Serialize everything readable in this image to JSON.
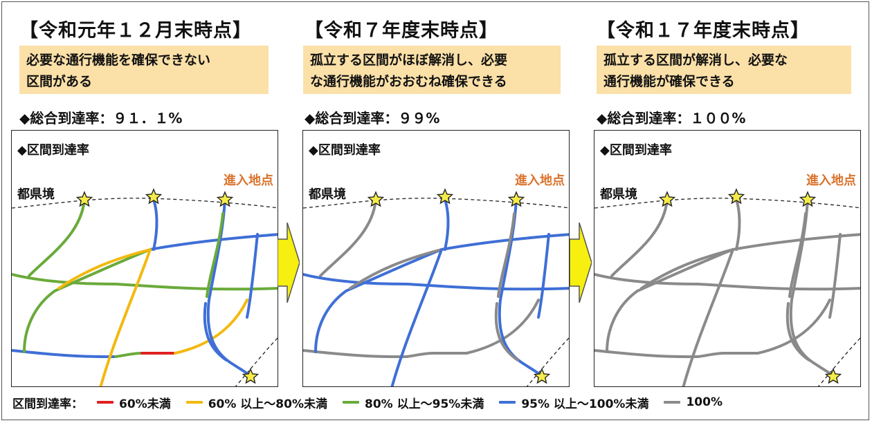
{
  "panels": [
    {
      "title": "【令和元年１２月末時点】",
      "description": [
        "必要な通行機能を確保できない",
        "区間がある"
      ],
      "overall_rate": "◆総合到達率：９１．１%",
      "section_label": "◆区間到達率",
      "prefecture_border_label": "都県境",
      "entry_point_label": "進入地点",
      "road_colors": {
        "main_horizontal": "blue95",
        "lower_horizontal_left": "blue95",
        "lower_horizontal_mid": "green80",
        "lower_horizontal_red": "red60",
        "lower_horizontal_right": "yellow60",
        "left_diagonal": "green80",
        "middle_cross": "green80",
        "middle_horizontal": "green80",
        "upper_yellow": "yellow60",
        "yellow_diagonal": "yellow60",
        "center_vertical": "blue95",
        "right_vertical": "blue95",
        "right_inner": "green80",
        "far_right": "blue95",
        "bottom_right_curve": "blue95"
      }
    },
    {
      "title": "【令和７年度末時点】",
      "description": [
        "孤立する区間がほぼ解消し、必要",
        "な通行機能がおおむね確保できる"
      ],
      "overall_rate": "◆総合到達率：９９%",
      "section_label": "◆区間到達率",
      "prefecture_border_label": "都県境",
      "entry_point_label": "進入地点",
      "road_colors": {
        "main_horizontal": "blue95",
        "lower_horizontal_left": "gray100",
        "lower_horizontal_mid": "gray100",
        "lower_horizontal_red": "gray100",
        "lower_horizontal_right": "gray100",
        "left_diagonal": "gray100",
        "middle_cross": "blue95",
        "middle_horizontal": "blue95",
        "upper_yellow": "gray100",
        "yellow_diagonal": "blue95",
        "center_vertical": "blue95",
        "right_vertical": "blue95",
        "right_inner": "gray100",
        "far_right": "blue95",
        "bottom_right_curve": "gray100"
      }
    },
    {
      "title": "【令和１７年度末時点】",
      "description": [
        "孤立する区間が解消し、必要な",
        "通行機能が確保できる"
      ],
      "overall_rate": "◆総合到達率：１００%",
      "section_label": "◆区間到達率",
      "prefecture_border_label": "都県境",
      "entry_point_label": "進入地点",
      "road_colors": {
        "main_horizontal": "gray100",
        "lower_horizontal_left": "gray100",
        "lower_horizontal_mid": "gray100",
        "lower_horizontal_red": "gray100",
        "lower_horizontal_right": "gray100",
        "left_diagonal": "gray100",
        "middle_cross": "gray100",
        "middle_horizontal": "gray100",
        "upper_yellow": "gray100",
        "yellow_diagonal": "gray100",
        "center_vertical": "gray100",
        "right_vertical": "gray100",
        "right_inner": "gray100",
        "far_right": "gray100",
        "bottom_right_curve": "gray100"
      }
    }
  ],
  "legend": {
    "title": "区間到達率：",
    "items": [
      {
        "key": "red60",
        "label": "60%未満",
        "color": "#e02020"
      },
      {
        "key": "yellow60",
        "label": "60% 以上～80%未満",
        "color": "#f2b90f"
      },
      {
        "key": "green80",
        "label": "80% 以上～95%未満",
        "color": "#6aaa3a"
      },
      {
        "key": "blue95",
        "label": "95% 以上～100%未満",
        "color": "#3f6fd6"
      },
      {
        "key": "gray100",
        "label": "100%",
        "color": "#8a8a8a"
      }
    ]
  },
  "colors": {
    "description_bg": "#fbe0a8",
    "entry_label": "#d9722b",
    "arrow_fill": "#f6ef10",
    "star_fill": "#f4ec4a"
  }
}
